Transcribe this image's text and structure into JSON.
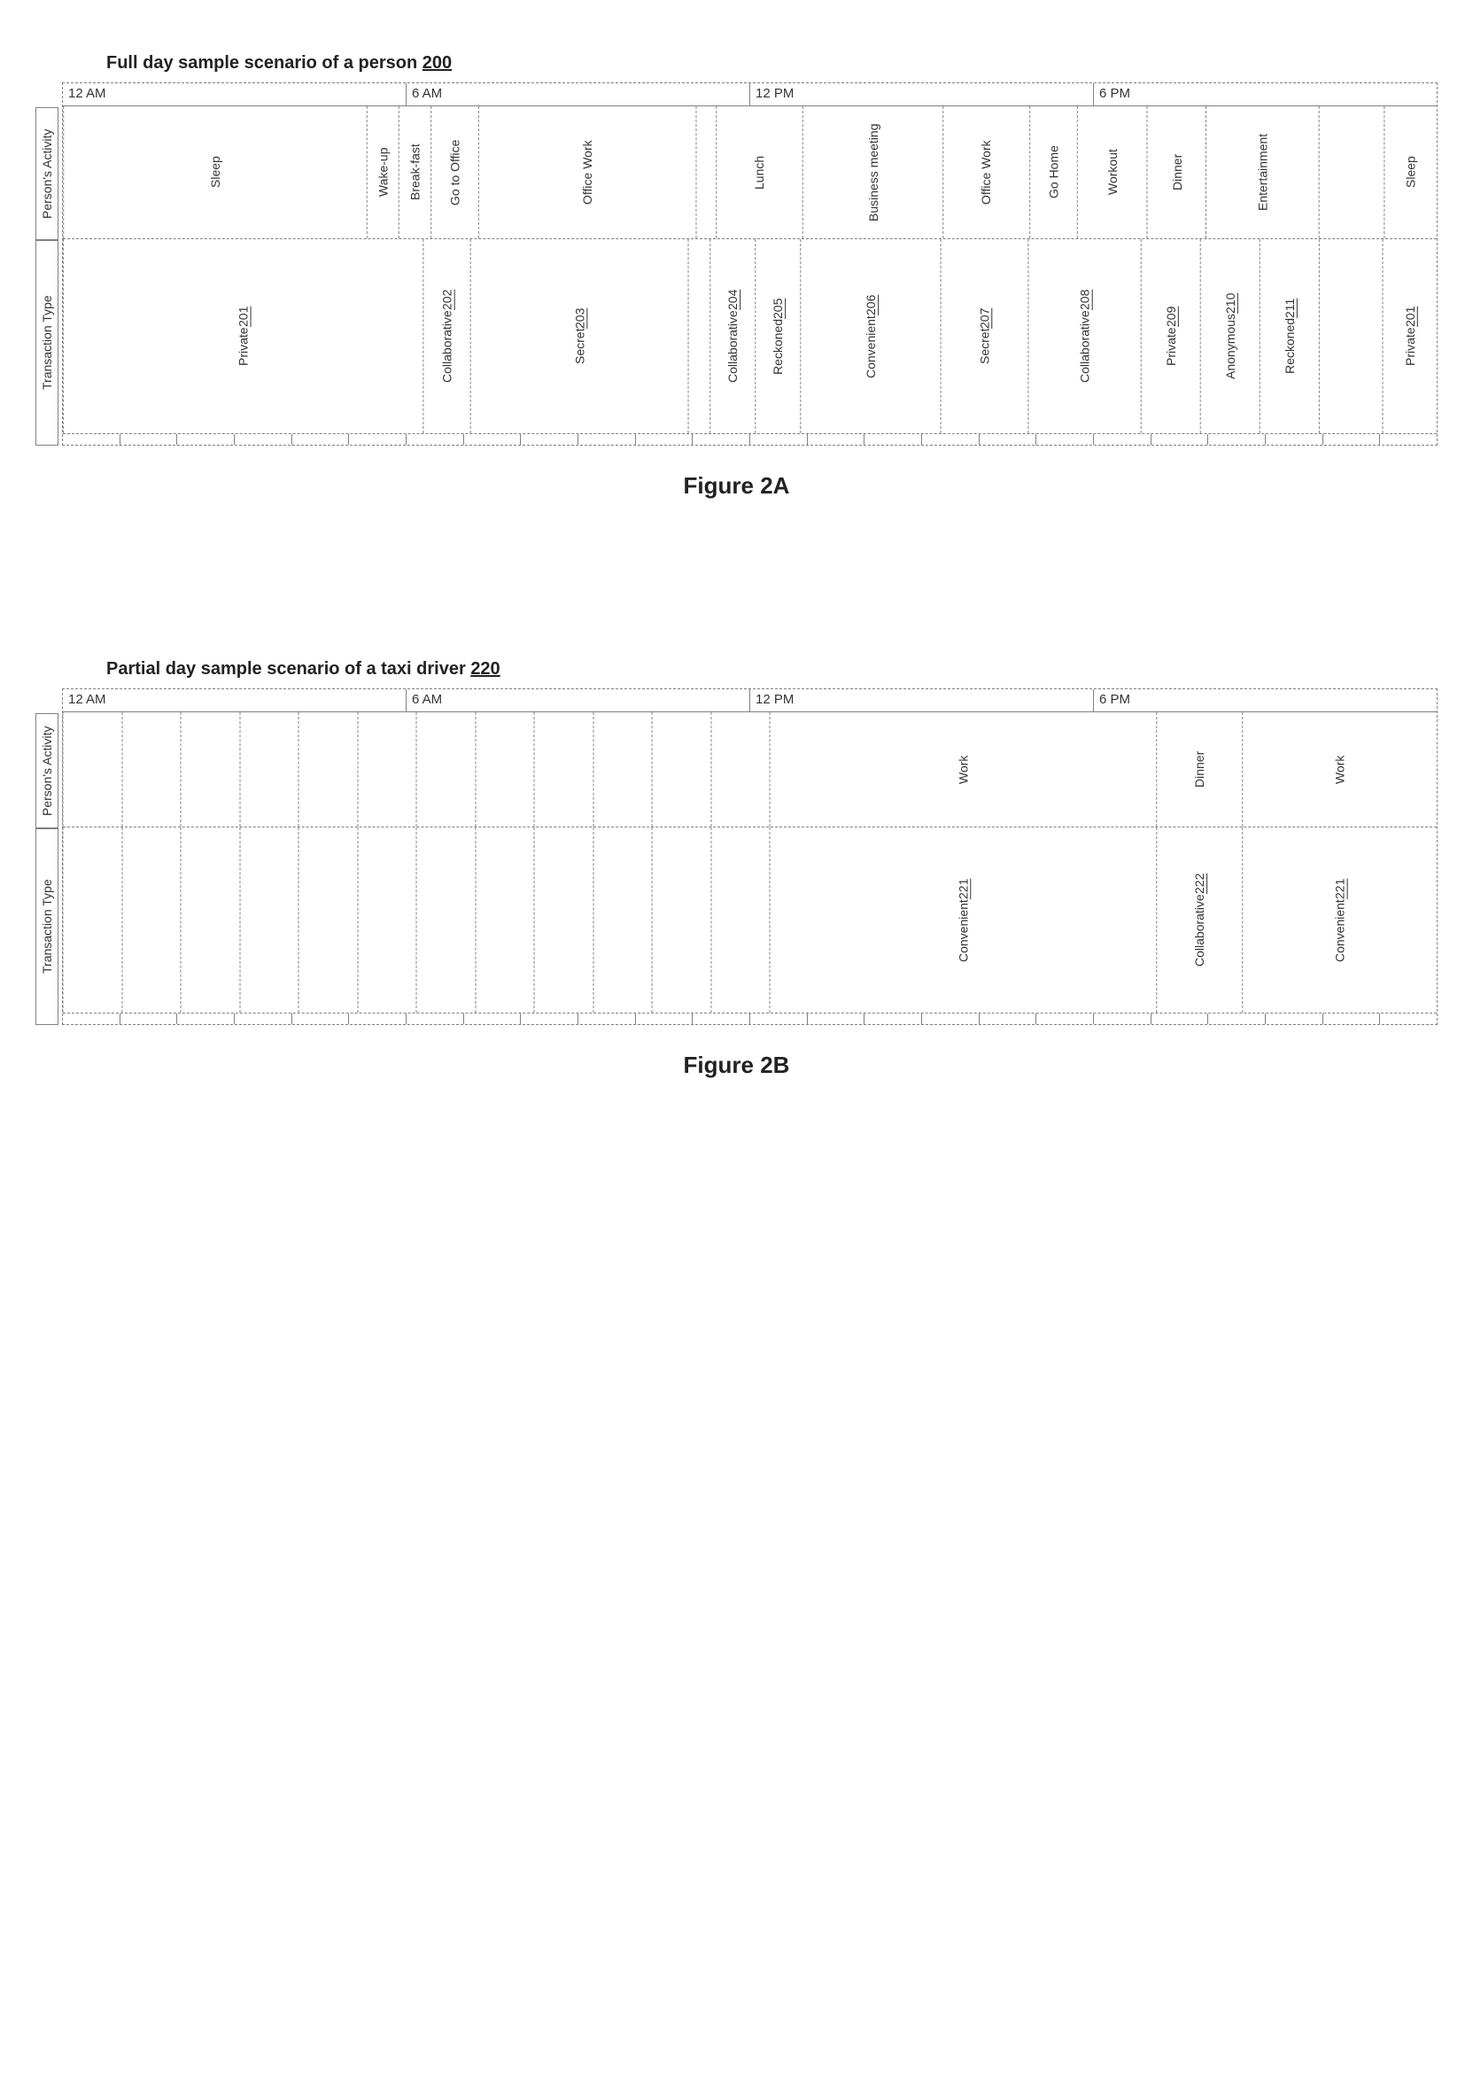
{
  "figureA": {
    "title": "Full day sample scenario of a person",
    "title_ref": "200",
    "caption": "Figure 2A",
    "total_hours": 24,
    "time_header": [
      {
        "label": "12 AM",
        "span": 6
      },
      {
        "label": "6 AM",
        "span": 6
      },
      {
        "label": "12 PM",
        "span": 6
      },
      {
        "label": "6 PM",
        "span": 6
      }
    ],
    "row_labels": {
      "activity": "Person's\nActivity",
      "transaction": "Transaction\nType"
    },
    "lane_height_activity": 150,
    "lane_height_transaction": 220,
    "activities": [
      {
        "label": "Sleep",
        "span": 5.5
      },
      {
        "label": "Wake-up",
        "span": 0.5
      },
      {
        "label": "Break-fast",
        "span": 0.5
      },
      {
        "label": "Go to Office",
        "span": 0.8
      },
      {
        "label": "Office Work",
        "span": 3.9
      },
      {
        "label": "",
        "span": 0.3
      },
      {
        "label": "Lunch",
        "span": 1.5
      },
      {
        "label": "Business meeting",
        "span": 2.5
      },
      {
        "label": "Office Work",
        "span": 1.5
      },
      {
        "label": "Go Home",
        "span": 0.8
      },
      {
        "label": "Workout",
        "span": 1.2
      },
      {
        "label": "Dinner",
        "span": 1.0
      },
      {
        "label": "Entertainment",
        "span": 2.0
      },
      {
        "label": "",
        "span": 1.1
      },
      {
        "label": "Sleep",
        "span": 0.9
      }
    ],
    "transactions": [
      {
        "label": "Private",
        "ref": "201",
        "span": 6.5
      },
      {
        "label": "Collaborative",
        "ref": "202",
        "span": 0.8
      },
      {
        "label": "Secret",
        "ref": "203",
        "span": 3.9
      },
      {
        "label": "",
        "ref": "",
        "span": 0.3
      },
      {
        "label": "Collaborative",
        "ref": "204",
        "span": 0.75
      },
      {
        "label": "Reckoned",
        "ref": "205",
        "span": 0.75
      },
      {
        "label": "Convenient",
        "ref": "206",
        "span": 2.5
      },
      {
        "label": "Secret",
        "ref": "207",
        "span": 1.5
      },
      {
        "label": "Collaborative",
        "ref": "208",
        "span": 2.0
      },
      {
        "label": "Private",
        "ref": "209",
        "span": 1.0
      },
      {
        "label": "Anonymous",
        "ref": "210",
        "span": 1.0
      },
      {
        "label": "Reckoned",
        "ref": "211",
        "span": 1.0
      },
      {
        "label": "",
        "ref": "",
        "span": 1.1
      },
      {
        "label": "Private",
        "ref": "201",
        "span": 0.9
      }
    ],
    "tick_count": 24
  },
  "figureB": {
    "title": "Partial day sample scenario of a taxi driver",
    "title_ref": "220",
    "caption": "Figure 2B",
    "total_hours": 24,
    "time_header": [
      {
        "label": "12 AM",
        "span": 6
      },
      {
        "label": "6 AM",
        "span": 6
      },
      {
        "label": "12 PM",
        "span": 6
      },
      {
        "label": "6 PM",
        "span": 6
      }
    ],
    "row_labels": {
      "activity": "Person's\nActivity",
      "transaction": "Transaction\nType"
    },
    "lane_height_activity": 130,
    "lane_height_transaction": 210,
    "empty_ticks": 12,
    "activities": [
      {
        "label": "Work",
        "span": 7
      },
      {
        "label": "Dinner",
        "span": 1.5
      },
      {
        "label": "Work",
        "span": 3.5
      }
    ],
    "transactions": [
      {
        "label": "Convenient",
        "ref": "221",
        "span": 7
      },
      {
        "label": "Collaborative",
        "ref": "222",
        "span": 1.5
      },
      {
        "label": "Convenient",
        "ref": "221",
        "span": 3.5
      }
    ],
    "tick_count": 24
  },
  "colors": {
    "border": "#808080",
    "text": "#333333",
    "background": "#ffffff"
  },
  "fonts": {
    "title_size": 20,
    "cell_size": 14,
    "caption_size": 26
  }
}
